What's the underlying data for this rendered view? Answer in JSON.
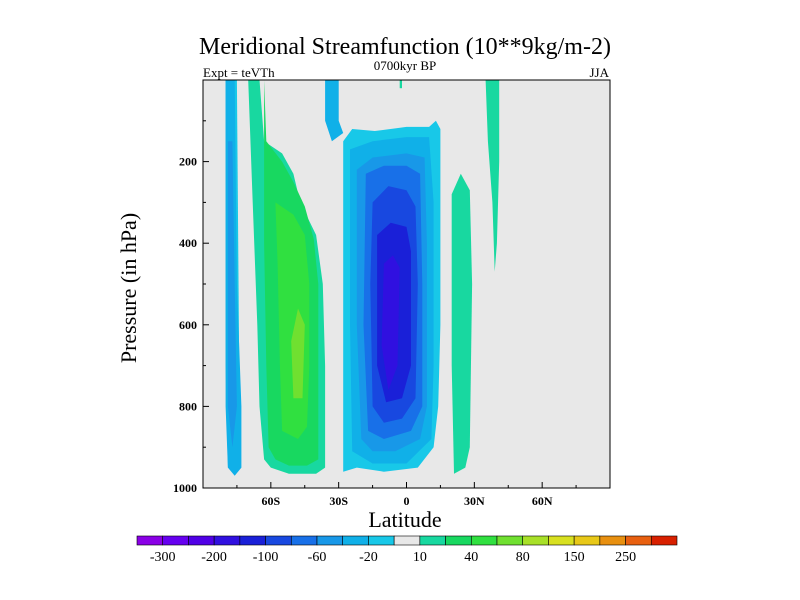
{
  "chart_data": {
    "type": "contour",
    "title": "Meridional Streamfunction (10**9kg/m-2)",
    "subtitle_left": "Expt = teVTh",
    "subtitle_center": "0700kyr BP",
    "subtitle_right": "JJA",
    "xlabel": "Latitude",
    "ylabel": "Pressure (in hPa)",
    "x_range": [
      -90,
      90
    ],
    "y_range": [
      0,
      1000
    ],
    "y_reversed": true,
    "x_ticks": [
      {
        "value": -60,
        "label": "60S"
      },
      {
        "value": -30,
        "label": "30S"
      },
      {
        "value": 0,
        "label": "0"
      },
      {
        "value": 30,
        "label": "30N"
      },
      {
        "value": 60,
        "label": "60N"
      }
    ],
    "y_ticks": [
      {
        "value": 200,
        "label": "200"
      },
      {
        "value": 400,
        "label": "400"
      },
      {
        "value": 600,
        "label": "600"
      },
      {
        "value": 800,
        "label": "800"
      },
      {
        "value": 1000,
        "label": "1000"
      }
    ],
    "background_color": "#e8e8e8",
    "colorbar": {
      "levels": [
        -300,
        -250,
        -200,
        -150,
        -100,
        -80,
        -60,
        -40,
        -20,
        -10,
        10,
        20,
        40,
        60,
        80,
        100,
        150,
        200,
        250,
        300
      ],
      "colors": [
        "#8a00e6",
        "#6600f0",
        "#5000e6",
        "#3010e0",
        "#1a20d8",
        "#1848e0",
        "#1870e8",
        "#1898e8",
        "#10b0e8",
        "#18c8e8",
        "#e8e8e8",
        "#18d8a0",
        "#18d860",
        "#30e040",
        "#70e030",
        "#a8e028",
        "#d8e020",
        "#e8c818",
        "#e89010",
        "#e86010",
        "#d82000"
      ],
      "labels": [
        {
          "label": "-300",
          "box": 1
        },
        {
          "label": "-200",
          "box": 3
        },
        {
          "label": "-100",
          "box": 5
        },
        {
          "label": "-60",
          "box": 7
        },
        {
          "label": "-20",
          "box": 9
        },
        {
          "label": "10",
          "box": 11
        },
        {
          "label": "40",
          "box": 13
        },
        {
          "label": "80",
          "box": 15
        },
        {
          "label": "150",
          "box": 17
        },
        {
          "label": "250",
          "box": 19
        }
      ]
    },
    "features": [
      {
        "name": "shallow-shade",
        "level": -10,
        "color": "#18c8e8",
        "points": [
          [
            -80,
            0
          ],
          [
            -75,
            0
          ],
          [
            -74,
            700
          ],
          [
            -75,
            950
          ],
          [
            -79,
            950
          ],
          [
            -80,
            700
          ]
        ]
      },
      {
        "name": "southern-ferrel-outer",
        "level": -20,
        "color": "#10b0e8",
        "points": [
          [
            -80,
            0
          ],
          [
            -76,
            0
          ],
          [
            -75,
            500
          ],
          [
            -73,
            800
          ],
          [
            -73,
            950
          ],
          [
            -76,
            970
          ],
          [
            -79,
            950
          ],
          [
            -80,
            800
          ],
          [
            -80,
            500
          ]
        ]
      },
      {
        "name": "southern-ferrel-inner",
        "level": -40,
        "color": "#1898e8",
        "points": [
          [
            -79,
            150
          ],
          [
            -77,
            150
          ],
          [
            -76,
            500
          ],
          [
            -75,
            800
          ],
          [
            -77,
            900
          ],
          [
            -79,
            800
          ],
          [
            -79,
            500
          ]
        ]
      },
      {
        "name": "southern-cell-outer",
        "level": 10,
        "color": "#18d8a0",
        "points": [
          [
            -70,
            0
          ],
          [
            -65,
            0
          ],
          [
            -63,
            150
          ],
          [
            -55,
            180
          ],
          [
            -50,
            230
          ],
          [
            -47,
            300
          ],
          [
            -40,
            380
          ],
          [
            -37,
            500
          ],
          [
            -36,
            700
          ],
          [
            -36,
            950
          ],
          [
            -40,
            965
          ],
          [
            -52,
            965
          ],
          [
            -60,
            950
          ],
          [
            -63,
            930
          ],
          [
            -65,
            800
          ],
          [
            -66,
            600
          ],
          [
            -68,
            300
          ]
        ]
      },
      {
        "name": "southern-cell-20",
        "level": 20,
        "color": "#18d860",
        "points": [
          [
            -63,
            0
          ],
          [
            -62,
            150
          ],
          [
            -55,
            200
          ],
          [
            -50,
            250
          ],
          [
            -45,
            310
          ],
          [
            -41,
            390
          ],
          [
            -39,
            500
          ],
          [
            -39,
            700
          ],
          [
            -39,
            930
          ],
          [
            -44,
            945
          ],
          [
            -52,
            945
          ],
          [
            -58,
            930
          ],
          [
            -61,
            900
          ],
          [
            -62,
            700
          ],
          [
            -63,
            400
          ]
        ]
      },
      {
        "name": "southern-cell-40",
        "level": 40,
        "color": "#30e040",
        "points": [
          [
            -58,
            300
          ],
          [
            -50,
            330
          ],
          [
            -45,
            380
          ],
          [
            -43,
            500
          ],
          [
            -43,
            700
          ],
          [
            -44,
            850
          ],
          [
            -48,
            880
          ],
          [
            -55,
            860
          ],
          [
            -56,
            700
          ],
          [
            -57,
            450
          ]
        ]
      },
      {
        "name": "southern-cell-core",
        "level": 60,
        "color": "#70e030",
        "points": [
          [
            -48,
            560
          ],
          [
            -45,
            600
          ],
          [
            -46,
            780
          ],
          [
            -50,
            780
          ],
          [
            -51,
            640
          ]
        ]
      },
      {
        "name": "southern-upper-shade",
        "level": -10,
        "color": "#10b0e8",
        "points": [
          [
            -36,
            0
          ],
          [
            -30,
            0
          ],
          [
            -30,
            100
          ],
          [
            -28,
            130
          ],
          [
            -33,
            150
          ],
          [
            -36,
            100
          ]
        ]
      },
      {
        "name": "hadley-outer",
        "level": -10,
        "color": "#18c8e8",
        "points": [
          [
            -28,
            150
          ],
          [
            -24,
            120
          ],
          [
            -14,
            125
          ],
          [
            0,
            115
          ],
          [
            10,
            115
          ],
          [
            13,
            100
          ],
          [
            15,
            120
          ],
          [
            15,
            300
          ],
          [
            15,
            600
          ],
          [
            14,
            800
          ],
          [
            12,
            900
          ],
          [
            5,
            950
          ],
          [
            -10,
            960
          ],
          [
            -22,
            950
          ],
          [
            -28,
            960
          ],
          [
            -28,
            700
          ],
          [
            -28,
            400
          ]
        ]
      },
      {
        "name": "hadley-20",
        "level": -20,
        "color": "#10b0e8",
        "points": [
          [
            -25,
            170
          ],
          [
            -15,
            150
          ],
          [
            0,
            140
          ],
          [
            10,
            140
          ],
          [
            12,
            300
          ],
          [
            12,
            700
          ],
          [
            11,
            880
          ],
          [
            0,
            940
          ],
          [
            -15,
            940
          ],
          [
            -24,
            910
          ],
          [
            -25,
            600
          ]
        ]
      },
      {
        "name": "hadley-40",
        "level": -40,
        "color": "#1898e8",
        "points": [
          [
            -22,
            220
          ],
          [
            -15,
            190
          ],
          [
            0,
            180
          ],
          [
            8,
            190
          ],
          [
            9,
            400
          ],
          [
            9,
            800
          ],
          [
            6,
            880
          ],
          [
            -5,
            910
          ],
          [
            -15,
            910
          ],
          [
            -20,
            880
          ],
          [
            -22,
            600
          ]
        ]
      },
      {
        "name": "hadley-60",
        "level": -60,
        "color": "#1870e8",
        "points": [
          [
            -18,
            230
          ],
          [
            -10,
            210
          ],
          [
            0,
            210
          ],
          [
            6,
            230
          ],
          [
            7,
            500
          ],
          [
            7,
            800
          ],
          [
            2,
            860
          ],
          [
            -10,
            880
          ],
          [
            -17,
            860
          ],
          [
            -19,
            600
          ]
        ]
      },
      {
        "name": "hadley-80",
        "level": -80,
        "color": "#1848e0",
        "points": [
          [
            -15,
            300
          ],
          [
            -8,
            260
          ],
          [
            0,
            270
          ],
          [
            4,
            310
          ],
          [
            5,
            500
          ],
          [
            4,
            780
          ],
          [
            -2,
            830
          ],
          [
            -10,
            840
          ],
          [
            -15,
            800
          ],
          [
            -16,
            500
          ]
        ]
      },
      {
        "name": "hadley-100",
        "level": -100,
        "color": "#1a20d8",
        "points": [
          [
            -13,
            380
          ],
          [
            -7,
            350
          ],
          [
            0,
            360
          ],
          [
            2,
            420
          ],
          [
            2,
            700
          ],
          [
            -2,
            780
          ],
          [
            -9,
            790
          ],
          [
            -13,
            700
          ]
        ]
      },
      {
        "name": "hadley-core",
        "level": -150,
        "color": "#3010e0",
        "points": [
          [
            -10,
            450
          ],
          [
            -6,
            430
          ],
          [
            -3,
            460
          ],
          [
            -4,
            700
          ],
          [
            -8,
            760
          ],
          [
            -11,
            650
          ]
        ]
      },
      {
        "name": "northern-strip",
        "level": 10,
        "color": "#18d8a0",
        "points": [
          [
            20,
            280
          ],
          [
            24,
            230
          ],
          [
            28,
            270
          ],
          [
            29,
            500
          ],
          [
            28,
            900
          ],
          [
            26,
            950
          ],
          [
            21,
            965
          ],
          [
            20,
            700
          ]
        ]
      },
      {
        "name": "northern-upper-strip",
        "level": 10,
        "color": "#18d8a0",
        "points": [
          [
            35,
            0
          ],
          [
            41,
            0
          ],
          [
            41,
            200
          ],
          [
            40,
            400
          ],
          [
            39,
            470
          ],
          [
            38,
            300
          ],
          [
            36,
            150
          ]
        ]
      },
      {
        "name": "equatorial-tail",
        "level": 10,
        "color": "#18d8a0",
        "points": [
          [
            -3,
            0
          ],
          [
            -2,
            0
          ],
          [
            -2,
            20
          ],
          [
            -3,
            20
          ]
        ]
      }
    ]
  }
}
